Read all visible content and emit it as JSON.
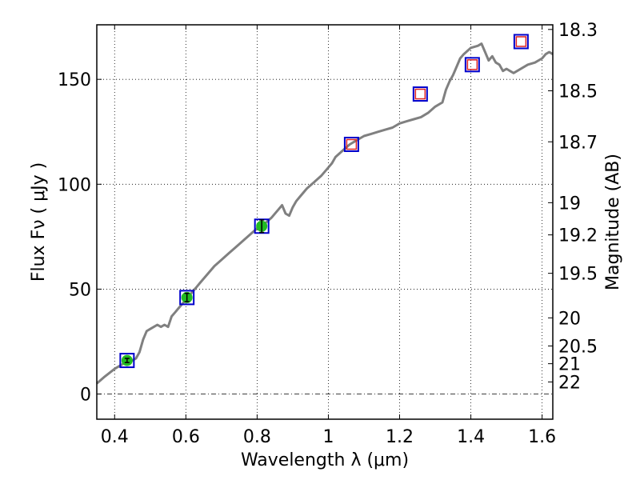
{
  "chart_data": {
    "type": "line",
    "title": "",
    "xlabel": "Wavelength  λ (μm)",
    "ylabel": "Flux  Fν  ( μJy )",
    "ylabel_right": "Magnitude (AB)",
    "xlim": [
      0.35,
      1.63
    ],
    "ylim": [
      -12,
      176
    ],
    "grid": true,
    "x_ticks": [
      0.4,
      0.6,
      0.8,
      1.0,
      1.2,
      1.4,
      1.6
    ],
    "x_tick_labels": [
      "0.4",
      "0.6",
      "0.8",
      "1",
      "1.2",
      "1.4",
      "1.6"
    ],
    "y_ticks": [
      0,
      50,
      100,
      150
    ],
    "y_tick_labels": [
      "0",
      "50",
      "100",
      "150"
    ],
    "mag_ticks": [
      18.3,
      18.5,
      18.7,
      19,
      19.2,
      19.5,
      20,
      20.5,
      21,
      22
    ],
    "mag_tick_labels": [
      "18.3",
      "18.5",
      "18.7",
      "19",
      "19.2",
      "19.5",
      "20",
      "20.5",
      "21",
      "22"
    ],
    "colors": {
      "spectrum": "#808080",
      "model_marker": "#0000cc",
      "observed_marker": "#22bb22",
      "predicted_marker": "#dd2222"
    },
    "series": [
      {
        "kind": "spectrum",
        "x": [
          0.35,
          0.37,
          0.385,
          0.4,
          0.41,
          0.42,
          0.43,
          0.44,
          0.45,
          0.46,
          0.47,
          0.48,
          0.49,
          0.5,
          0.51,
          0.52,
          0.53,
          0.54,
          0.55,
          0.56,
          0.57,
          0.58,
          0.59,
          0.6,
          0.61,
          0.62,
          0.63,
          0.64,
          0.66,
          0.68,
          0.7,
          0.72,
          0.74,
          0.76,
          0.78,
          0.8,
          0.82,
          0.84,
          0.86,
          0.87,
          0.88,
          0.89,
          0.9,
          0.91,
          0.92,
          0.94,
          0.96,
          0.98,
          1.0,
          1.01,
          1.02,
          1.04,
          1.06,
          1.08,
          1.1,
          1.12,
          1.14,
          1.16,
          1.18,
          1.2,
          1.22,
          1.24,
          1.26,
          1.28,
          1.3,
          1.32,
          1.33,
          1.34,
          1.35,
          1.36,
          1.37,
          1.38,
          1.4,
          1.42,
          1.43,
          1.44,
          1.45,
          1.46,
          1.47,
          1.48,
          1.49,
          1.5,
          1.52,
          1.54,
          1.56,
          1.58,
          1.6,
          1.61,
          1.62,
          1.63
        ],
        "y": [
          5,
          8,
          10,
          12,
          13,
          14,
          15,
          16,
          16,
          17,
          20,
          26,
          30,
          31,
          32,
          33,
          32,
          33,
          32,
          37,
          39,
          41,
          43,
          45,
          47,
          49,
          51,
          53,
          57,
          61,
          64,
          67,
          70,
          73,
          76,
          79,
          81,
          84,
          88,
          90,
          86,
          85,
          89,
          92,
          94,
          98,
          101,
          104,
          108,
          110,
          113,
          116,
          119,
          121,
          123,
          124,
          125,
          126,
          127,
          129,
          130,
          131,
          132,
          134,
          137,
          139,
          145,
          149,
          152,
          156,
          160,
          162,
          165,
          166,
          167,
          163,
          159,
          161,
          158,
          157,
          154,
          155,
          153,
          155,
          157,
          158,
          160,
          162,
          163,
          162
        ]
      },
      {
        "kind": "model",
        "name": "",
        "x": [
          0.435,
          0.603,
          0.813,
          1.065,
          1.258,
          1.404,
          1.541
        ],
        "y": [
          16,
          46,
          80,
          119,
          143,
          157,
          168
        ]
      },
      {
        "kind": "observed",
        "name": "",
        "x": [
          0.435,
          0.603,
          0.813
        ],
        "y": [
          16,
          46,
          80
        ],
        "err": [
          1,
          2,
          3
        ]
      },
      {
        "kind": "predicted",
        "name": "",
        "x": [
          1.065,
          1.258,
          1.404,
          1.541
        ],
        "y": [
          119,
          143,
          157,
          168
        ]
      }
    ]
  }
}
